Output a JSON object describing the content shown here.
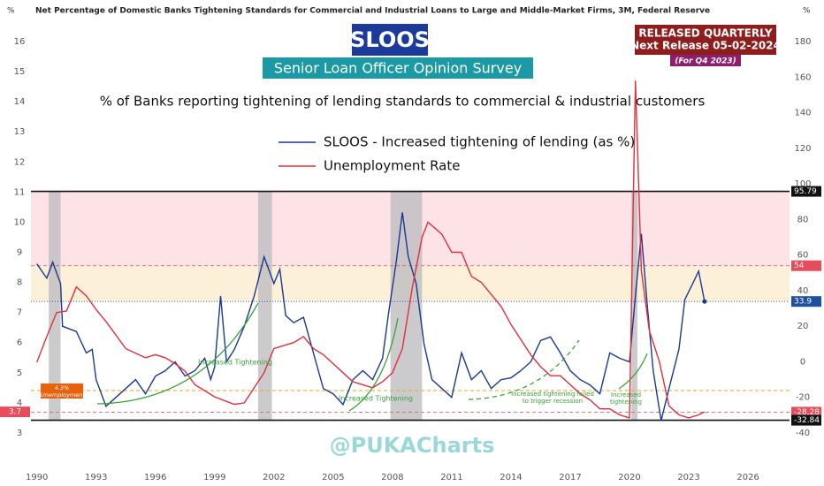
{
  "chart_data": {
    "type": "line",
    "header": "Net Percentage of Domestic Banks Tightening Standards for Commercial and Industrial Loans to Large and Middle-Market Firms, 3M, Federal Reserve",
    "y_unit": "%",
    "y2_unit": "%",
    "title": "SLOOS",
    "subtitle": "Senior Loan Officer Opinion Survey",
    "description": "% of Banks reporting tightening of lending standards to commercial & industrial customers",
    "release": [
      "RELEASED QUARTERLY",
      "Next Release 05-02-2024",
      "(For Q4 2023)"
    ],
    "watermark": "@PUKACharts",
    "annotations": [
      "Increased Tightening",
      "Increased Tightening",
      "Increased tightening failed to trigger recession",
      "Increased tightening",
      "4.3% Unemployment"
    ],
    "xlim": [
      1989.7,
      2028.1
    ],
    "xticks": [
      1990,
      1993,
      1996,
      1999,
      2002,
      2005,
      2008,
      2011,
      2014,
      2017,
      2020,
      2023,
      2026
    ],
    "ylim": [
      2.6,
      16.6
    ],
    "yticks": [
      3,
      4,
      5,
      6,
      7,
      8,
      9,
      10,
      11,
      12,
      13,
      14,
      15,
      16
    ],
    "y2lim": [
      -40,
      180
    ],
    "y2ticks": [
      -40,
      -20,
      0,
      20,
      40,
      60,
      80,
      100,
      120,
      140,
      160,
      180
    ],
    "recessions": [
      [
        1990.6,
        1991.2
      ],
      [
        2001.2,
        2001.9
      ],
      [
        2007.9,
        2009.5
      ],
      [
        2020.1,
        2020.4
      ]
    ],
    "bands": [
      {
        "from": 54,
        "to": 95.79,
        "color": "#fde3e6"
      },
      {
        "from": 33.9,
        "to": 54,
        "color": "#fdf0d8"
      }
    ],
    "y2_flags": [
      {
        "value": 95.79,
        "color": "#111111"
      },
      {
        "value": 54,
        "color": "#e74c5a"
      },
      {
        "value": 33.9,
        "color": "#1f4fa0"
      },
      {
        "value": -28.28,
        "color": "#e74c5a"
      },
      {
        "value": -32.84,
        "color": "#111111"
      }
    ],
    "y_flags": [
      {
        "value": 3.7,
        "color": "#e74c5a"
      }
    ],
    "series": [
      {
        "name": "SLOOS - Increased tightening of lending (as %)",
        "color": "#1a3a8f",
        "axis": "y2",
        "x": [
          1990.0,
          1990.5,
          1990.8,
          1991.2,
          1991.3,
          1992.0,
          1992.5,
          1992.8,
          1993.0,
          1993.5,
          1994.0,
          1994.5,
          1995.0,
          1995.5,
          1996.0,
          1996.5,
          1997.0,
          1997.5,
          1998.0,
          1998.5,
          1998.8,
          1999.0,
          1999.3,
          1999.6,
          2000.0,
          2000.5,
          2001.0,
          2001.5,
          2002.0,
          2002.3,
          2002.6,
          2003.0,
          2003.5,
          2004.0,
          2004.5,
          2005.0,
          2005.5,
          2006.0,
          2006.5,
          2007.0,
          2007.5,
          2007.8,
          2008.2,
          2008.5,
          2008.8,
          2009.2,
          2009.6,
          2010.0,
          2010.5,
          2011.0,
          2011.5,
          2012.0,
          2012.5,
          2013.0,
          2013.5,
          2014.0,
          2014.5,
          2015.0,
          2015.5,
          2016.0,
          2016.5,
          2017.0,
          2017.5,
          2018.0,
          2018.5,
          2019.0,
          2019.5,
          2020.0,
          2020.3,
          2020.6,
          2020.9,
          2021.2,
          2021.6,
          2022.0,
          2022.5,
          2022.8,
          2023.2,
          2023.5,
          2023.8
        ],
        "values": [
          55,
          47,
          56,
          44,
          20,
          17,
          5,
          7,
          -10,
          -25,
          -20,
          -15,
          -10,
          -18,
          -8,
          -5,
          0,
          -8,
          -5,
          2,
          -10,
          -3,
          37,
          0,
          7,
          20,
          37,
          59,
          44,
          52,
          26,
          22,
          25,
          5,
          -15,
          -18,
          -24,
          -10,
          -5,
          -10,
          2,
          27,
          57,
          84,
          59,
          44,
          10,
          -10,
          -15,
          -20,
          5,
          -10,
          -5,
          -15,
          -10,
          -9,
          -5,
          0,
          12,
          14,
          5,
          -5,
          -10,
          -13,
          -18,
          5,
          2,
          0,
          37,
          72,
          32,
          -5,
          -33,
          -15,
          7,
          35,
          44,
          51,
          33.9
        ]
      },
      {
        "name": "Unemployment Rate",
        "color": "#e0303c",
        "axis": "y",
        "x": [
          1990.0,
          1990.5,
          1991.0,
          1991.5,
          1992.0,
          1992.5,
          1993.0,
          1993.5,
          1994.0,
          1994.5,
          1995.0,
          1995.5,
          1996.0,
          1996.5,
          1997.0,
          1997.5,
          1998.0,
          1999.0,
          2000.0,
          2000.5,
          2001.0,
          2001.5,
          2002.0,
          2002.5,
          2003.0,
          2003.5,
          2004.0,
          2004.5,
          2005.0,
          2005.5,
          2006.0,
          2006.5,
          2007.0,
          2007.5,
          2008.0,
          2008.5,
          2009.0,
          2009.5,
          2009.8,
          2010.5,
          2011.0,
          2011.5,
          2012.0,
          2012.5,
          2013.0,
          2013.5,
          2014.0,
          2014.5,
          2015.0,
          2015.5,
          2016.0,
          2016.5,
          2017.0,
          2017.5,
          2018.0,
          2018.5,
          2019.0,
          2019.5,
          2020.0,
          2020.3,
          2020.6,
          2021.0,
          2021.5,
          2022.0,
          2022.5,
          2023.0,
          2023.5,
          2023.8
        ],
        "values": [
          5.35,
          6.2,
          7.0,
          7.05,
          7.85,
          7.55,
          7.1,
          6.7,
          6.25,
          5.8,
          5.65,
          5.5,
          5.6,
          5.5,
          5.3,
          5.05,
          4.6,
          4.2,
          3.95,
          4.0,
          4.5,
          5.0,
          5.8,
          5.9,
          6.0,
          6.2,
          5.8,
          5.6,
          5.3,
          5.0,
          4.7,
          4.6,
          4.5,
          4.7,
          5.0,
          5.8,
          7.8,
          9.5,
          10.0,
          9.6,
          9.0,
          9.0,
          8.2,
          8.0,
          7.6,
          7.2,
          6.6,
          6.1,
          5.6,
          5.2,
          4.9,
          4.9,
          4.6,
          4.3,
          4.1,
          3.8,
          3.8,
          3.6,
          3.5,
          14.7,
          8.4,
          6.4,
          5.4,
          3.9,
          3.6,
          3.5,
          3.6,
          3.7
        ]
      }
    ]
  }
}
